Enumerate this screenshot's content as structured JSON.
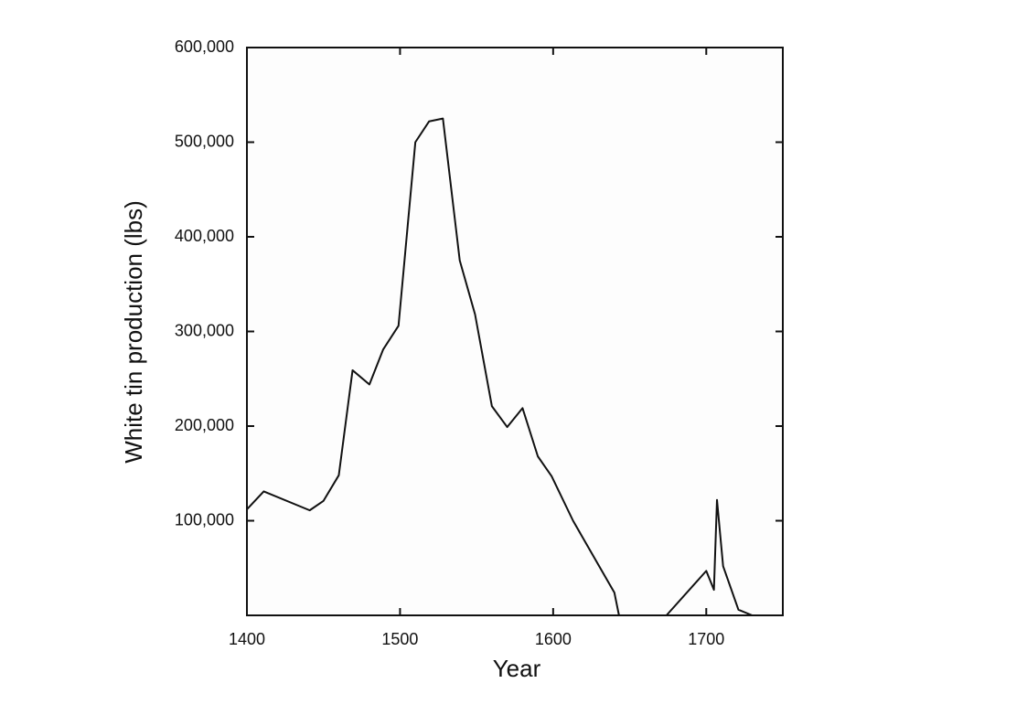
{
  "chart_data": {
    "type": "line",
    "x_label": "Year",
    "y_label": "White tin production (lbs)",
    "x": [
      1400,
      1411,
      1441,
      1450,
      1460,
      1469,
      1480,
      1489,
      1499,
      1510,
      1519,
      1528,
      1539,
      1549,
      1560,
      1570,
      1580,
      1590,
      1599,
      1613,
      1640,
      1643,
      1660,
      1674,
      1700,
      1705,
      1707,
      1711,
      1721,
      1730
    ],
    "series": [
      {
        "color": "#111111",
        "values": [
          112000,
          131000,
          111000,
          121000,
          148000,
          259000,
          244000,
          281000,
          306000,
          500000,
          522000,
          525000,
          375000,
          318000,
          221000,
          199000,
          219000,
          168000,
          147000,
          100000,
          24000,
          0,
          null,
          0,
          47000,
          27000,
          122000,
          52000,
          6000,
          0
        ]
      }
    ],
    "xlim": [
      1400,
      1750
    ],
    "ylim": [
      0,
      600000
    ],
    "xticks": [
      1400,
      1500,
      1600,
      1700
    ],
    "yticks": [
      {
        "value": 100000,
        "label": "100,000"
      },
      {
        "value": 200000,
        "label": "200,000"
      },
      {
        "value": 300000,
        "label": "300,000"
      },
      {
        "value": 400000,
        "label": "400,000"
      },
      {
        "value": 500000,
        "label": "500,000"
      },
      {
        "value": 600000,
        "label": "600,000"
      }
    ],
    "grid": false
  }
}
